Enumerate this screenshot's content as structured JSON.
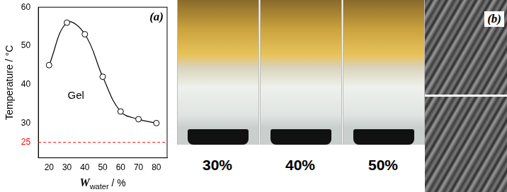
{
  "chart_data": {
    "type": "line",
    "panel_label": "(a)",
    "ylabel": "Temperature / °C",
    "xlabel": [
      {
        "text": "W",
        "style": "italic"
      },
      {
        "text": "water",
        "style": "subscript"
      },
      {
        "text": " / %",
        "style": "normal"
      }
    ],
    "x": [
      20,
      30,
      40,
      50,
      60,
      70,
      80
    ],
    "values": [
      45,
      56,
      53,
      42,
      33,
      31,
      30
    ],
    "color": "#000000",
    "marker": "open_circle",
    "line_style": "solid",
    "xlim": [
      14,
      86
    ],
    "xticks": [
      20,
      30,
      40,
      50,
      60,
      70,
      80
    ],
    "ylim": [
      21,
      60
    ],
    "yticks": [
      30,
      40,
      50,
      60
    ],
    "grid": false,
    "annotations": [
      {
        "text": "Gel",
        "x": 35,
        "y": 37
      }
    ],
    "hline": {
      "value": 25,
      "label": "25",
      "color": "#ff0000",
      "line_style": "dashed"
    }
  },
  "photos": {
    "labels": [
      "30%",
      "40%",
      "50%"
    ]
  },
  "sem_panel_label": "(b)"
}
